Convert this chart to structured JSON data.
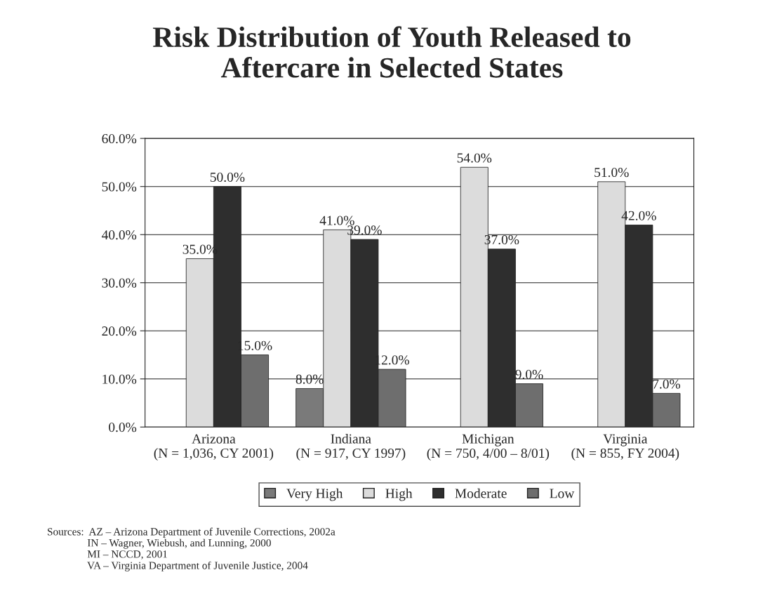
{
  "chart_data": {
    "type": "bar",
    "title": "Risk Distribution of Youth Released to\nAftercare in Selected States",
    "categories": [
      "Arizona\n(N = 1,036, CY 2001)",
      "Indiana\n(N = 917, CY 1997)",
      "Michigan\n(N = 750, 4/00 – 8/01)",
      "Virginia\n(N = 855, FY 2004)"
    ],
    "series": [
      {
        "name": "Very High",
        "color": "#7a7a7a",
        "values": [
          null,
          8.0,
          null,
          null
        ],
        "value_labels": [
          null,
          "8.0%",
          null,
          null
        ]
      },
      {
        "name": "High",
        "color": "#dcdcdc",
        "values": [
          35.0,
          41.0,
          54.0,
          51.0
        ],
        "value_labels": [
          "35.0%",
          "41.0%",
          "54.0%",
          "51.0%"
        ]
      },
      {
        "name": "Moderate",
        "color": "#2e2e2e",
        "values": [
          50.0,
          39.0,
          37.0,
          42.0
        ],
        "value_labels": [
          "50.0%",
          "39.0%",
          "37.0%",
          "42.0%"
        ]
      },
      {
        "name": "Low",
        "color": "#6e6e6e",
        "values": [
          15.0,
          12.0,
          9.0,
          7.0
        ],
        "value_labels": [
          "15.0%",
          "12.0%",
          "9.0%",
          "7.0%"
        ]
      }
    ],
    "ylim": [
      0,
      60
    ],
    "yticks": [
      {
        "value": 0,
        "label": "0.0%"
      },
      {
        "value": 10,
        "label": "10.0%"
      },
      {
        "value": 20,
        "label": "20.0%"
      },
      {
        "value": 30,
        "label": "30.0%"
      },
      {
        "value": 40,
        "label": "40.0%"
      },
      {
        "value": 50,
        "label": "50.0%"
      },
      {
        "value": 60,
        "label": "60.0%"
      }
    ],
    "grid": "y",
    "legend": "bottom",
    "annotations": [
      "Sources:  AZ – Arizona Department of Juvenile Corrections, 2002a\n               IN – Wagner, Wiebush, and Lunning, 2000\n               MI – NCCD, 2001\n               VA – Virginia Department of Juvenile Justice, 2004"
    ]
  }
}
